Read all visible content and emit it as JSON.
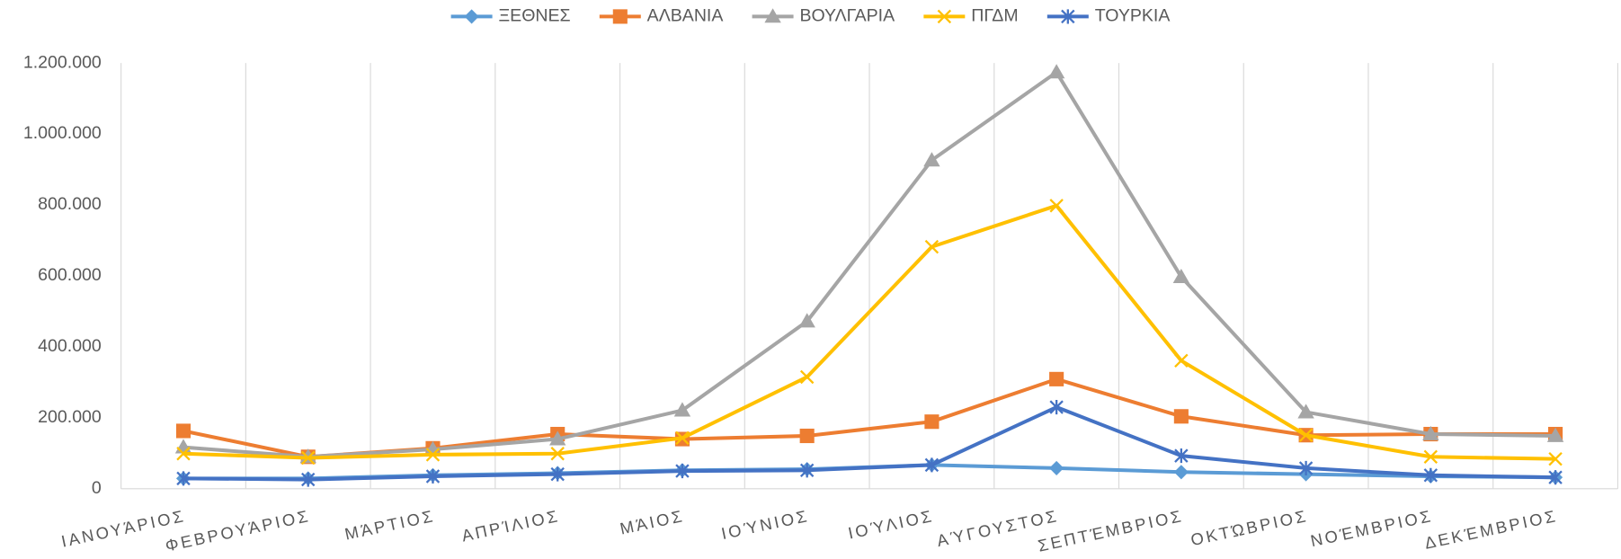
{
  "chart_data": {
    "type": "line",
    "categories": [
      "ΙΑΝΟΥΆΡΙΟΣ",
      "ΦΕΒΡΟΥΆΡΙΟΣ",
      "ΜΆΡΤΙΟΣ",
      "ΑΠΡΊΛΙΟΣ",
      "ΜΆΙΟΣ",
      "ΙΟΎΝΙΟΣ",
      "ΙΟΎΛΙΟΣ",
      "ΑΎΓΟΥΣΤΟΣ",
      "ΣΕΠΤΈΜΒΡΙΟΣ",
      "ΟΚΤΏΒΡΙΟΣ",
      "ΝΟΈΜΒΡΙΟΣ",
      "ΔΕΚΈΜΒΡΙΟΣ"
    ],
    "series": [
      {
        "name": "ΞΕΘΝΕΣ",
        "color": "#5b9bd5",
        "marker": "diamond",
        "values": [
          29000,
          29000,
          38000,
          44000,
          52000,
          55000,
          67000,
          58000,
          47000,
          41000,
          35000,
          32000
        ]
      },
      {
        "name": "ΑΛΒΑΝΙΑ",
        "color": "#ed7d31",
        "marker": "square",
        "values": [
          163000,
          90000,
          114000,
          154000,
          140000,
          149000,
          189000,
          309000,
          204000,
          151000,
          154000,
          154000
        ]
      },
      {
        "name": "ΒΟΥΛΓΑΡΙΑ",
        "color": "#a5a5a5",
        "marker": "triangle",
        "values": [
          117000,
          90000,
          111000,
          140000,
          221000,
          472000,
          926000,
          1174000,
          597000,
          216000,
          154000,
          149000
        ]
      },
      {
        "name": "ΠΓΔΜ",
        "color": "#ffc000",
        "marker": "x",
        "values": [
          99000,
          87000,
          96000,
          99000,
          143000,
          315000,
          682000,
          798000,
          361000,
          151000,
          90000,
          84000
        ]
      },
      {
        "name": "ΤΟΥΡΚΙΑ",
        "color": "#4472c4",
        "marker": "star",
        "values": [
          29000,
          26000,
          35000,
          41000,
          50000,
          52000,
          67000,
          230000,
          93000,
          58000,
          38000,
          32000
        ]
      }
    ],
    "ylim": [
      0,
      1200000
    ],
    "yticks": [
      0,
      {
        "value": 200000,
        "label": "200.000"
      },
      {
        "value": 400000,
        "label": "400.000"
      },
      {
        "value": 600000,
        "label": "600.000"
      },
      {
        "value": 800000,
        "label": "800.000"
      },
      {
        "value": 1000000,
        "label": "1.000.000"
      },
      {
        "value": 1200000,
        "label": "1.200.000"
      }
    ],
    "grid": "x",
    "legend": "top"
  }
}
